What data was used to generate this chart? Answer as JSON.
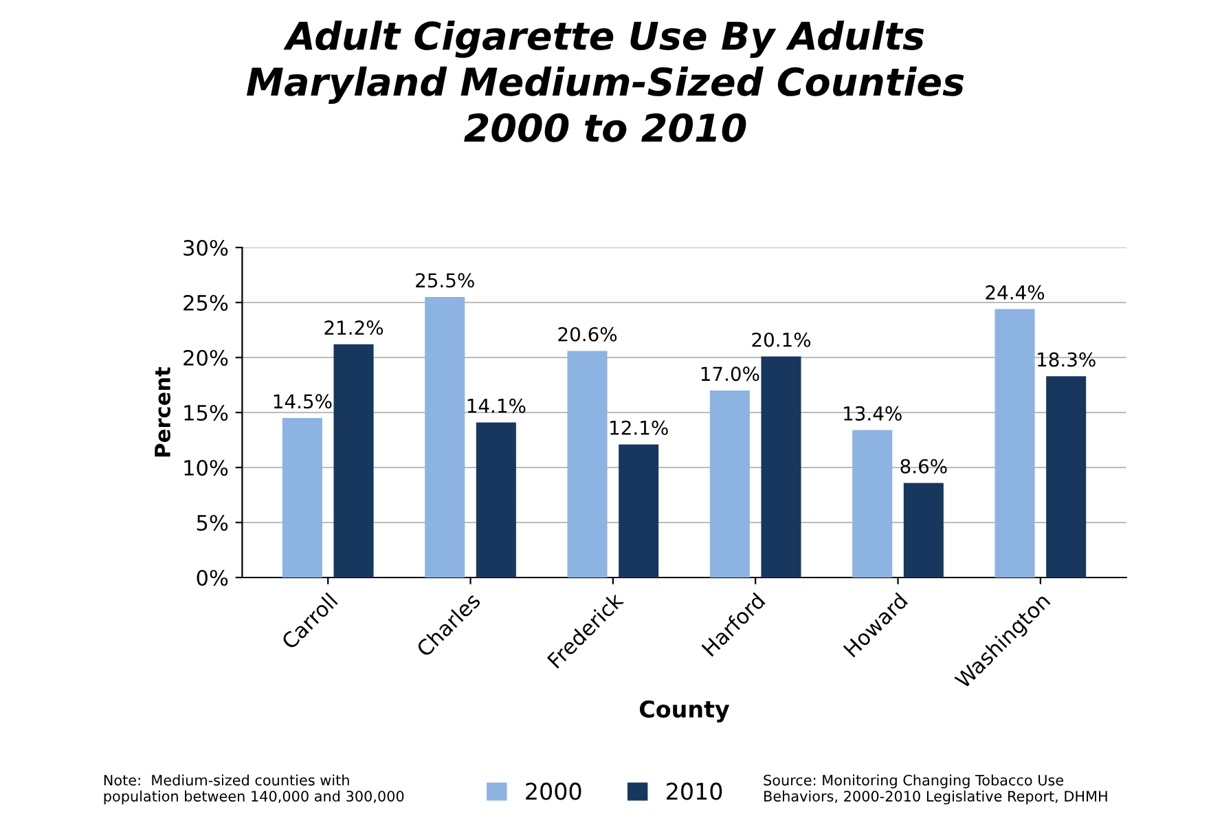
{
  "chart_data": {
    "type": "bar",
    "title": "Adult Cigarette Use By Adults\nMaryland Medium-Sized Counties\n2000 to 2010",
    "xlabel": "County",
    "ylabel": "Percent",
    "categories": [
      "Carroll",
      "Charles",
      "Frederick",
      "Harford",
      "Howard",
      "Washington"
    ],
    "series": [
      {
        "name": "2000",
        "color": "#8db3e2",
        "values": [
          14.5,
          25.5,
          20.6,
          17.0,
          13.4,
          24.4
        ],
        "value_labels": [
          "14.5%",
          "25.5%",
          "20.6%",
          "17.0%",
          "13.4%",
          "24.4%"
        ]
      },
      {
        "name": "2010",
        "color": "#17375e",
        "values": [
          21.2,
          14.1,
          12.1,
          20.1,
          8.6,
          18.3
        ],
        "value_labels": [
          "21.2%",
          "14.1%",
          "12.1%",
          "20.1%",
          "8.6%",
          "18.3%"
        ]
      }
    ],
    "ylim": [
      0,
      30
    ],
    "yticks": [
      {
        "value": 0,
        "label": "0%"
      },
      {
        "value": 5,
        "label": "5%"
      },
      {
        "value": 10,
        "label": "10%"
      },
      {
        "value": 15,
        "label": "15%"
      },
      {
        "value": 20,
        "label": "20%"
      },
      {
        "value": 25,
        "label": "25%"
      },
      {
        "value": 30,
        "label": "30%"
      }
    ],
    "grid": "y",
    "legend": "bottom",
    "annotations": [
      "Note:  Medium-sized counties with\npopulation between 140,000 and 300,000",
      "Source: Monitoring Changing Tobacco Use\nBehaviors, 2000-2010 Legislative Report, DHMH"
    ]
  }
}
